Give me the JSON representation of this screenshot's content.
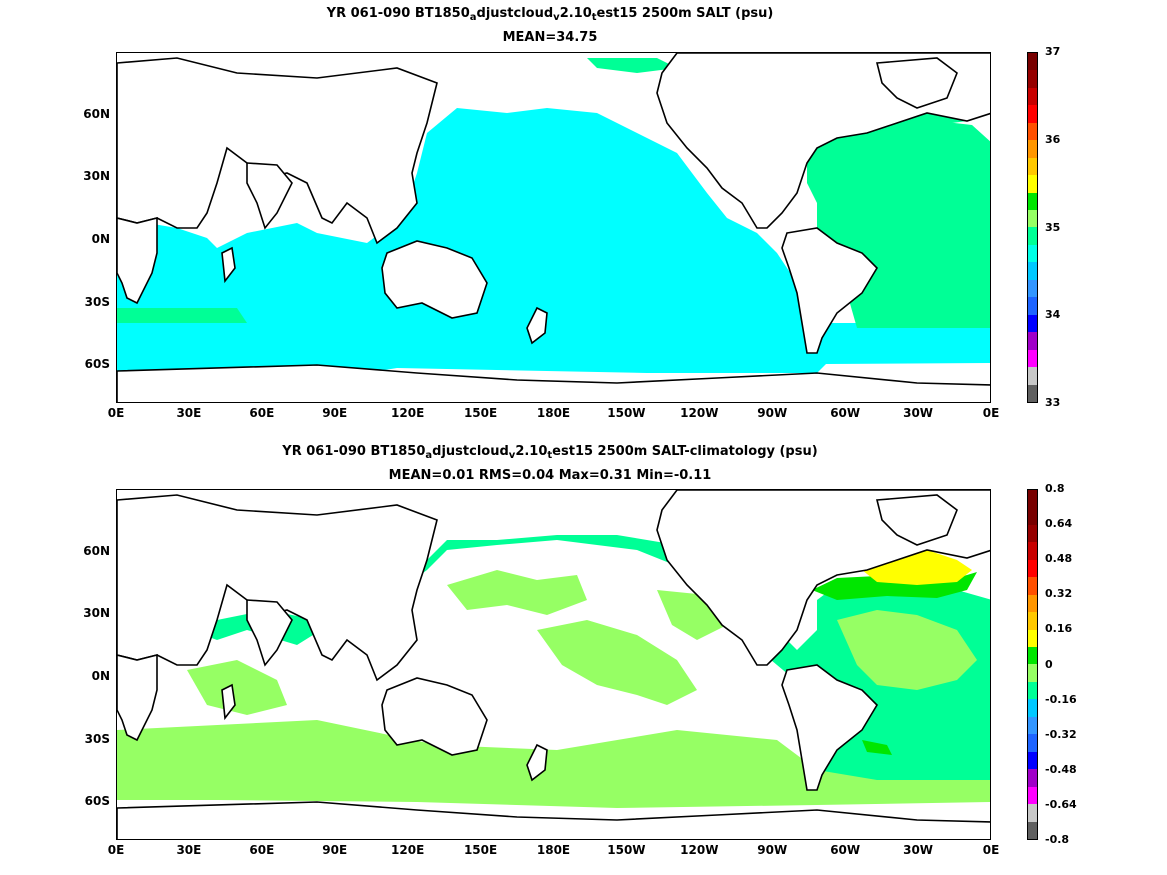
{
  "panel1": {
    "title_prefix": "YR 061-090 BT1850",
    "title_sub1": "a",
    "title_mid": "djustcloud",
    "title_sub2": "v",
    "title_mid2": "2.10",
    "title_sub3": "t",
    "title_suffix": "est15 2500m SALT (psu)",
    "stats": "MEAN=34.75",
    "colorbar_labels": [
      "33",
      "34",
      "35",
      "36",
      "37"
    ],
    "colorbar_colors": [
      "#606060",
      "#c8c8c8",
      "#ff00ff",
      "#a000c8",
      "#0000ff",
      "#1e64ff",
      "#3296ff",
      "#00c8ff",
      "#00ffe6",
      "#00ff96",
      "#96ff64",
      "#00e600",
      "#ffff00",
      "#ffc800",
      "#ff9600",
      "#ff5000",
      "#ff0000",
      "#c80000",
      "#960000",
      "#780000"
    ]
  },
  "panel2": {
    "title_prefix": "YR 061-090 BT1850",
    "title_sub1": "a",
    "title_mid": "djustcloud",
    "title_sub2": "v",
    "title_mid2": "2.10",
    "title_sub3": "t",
    "title_suffix": "est15 2500m SALT-climatology (psu)",
    "stats": "MEAN=0.01   RMS=0.04   Max=0.31   Min=-0.11",
    "colorbar_labels": [
      "-0.8",
      "-0.64",
      "-0.48",
      "-0.32",
      "-0.16",
      "0",
      "0.16",
      "0.32",
      "0.48",
      "0.64",
      "0.8"
    ],
    "colorbar_colors": [
      "#606060",
      "#c8c8c8",
      "#ff00ff",
      "#a000c8",
      "#0000ff",
      "#1e64ff",
      "#3296ff",
      "#00c8ff",
      "#00ff96",
      "#96ff64",
      "#00e600",
      "#ffff00",
      "#ffc800",
      "#ff9600",
      "#ff5000",
      "#ff0000",
      "#c80000",
      "#960000",
      "#780000",
      "#780000"
    ]
  },
  "x_ticks": [
    "0E",
    "30E",
    "60E",
    "90E",
    "120E",
    "150E",
    "180E",
    "150W",
    "120W",
    "90W",
    "60W",
    "30W",
    "0E"
  ],
  "y_ticks": [
    "60N",
    "30N",
    "0N",
    "30S",
    "60S"
  ],
  "colors": {
    "ocean_mean": "#00ffff",
    "ocean_green": "#00ff96",
    "ocean_lightgreen": "#96ff64",
    "green": "#00e600",
    "yellow": "#ffff00",
    "orange": "#ffc800"
  }
}
